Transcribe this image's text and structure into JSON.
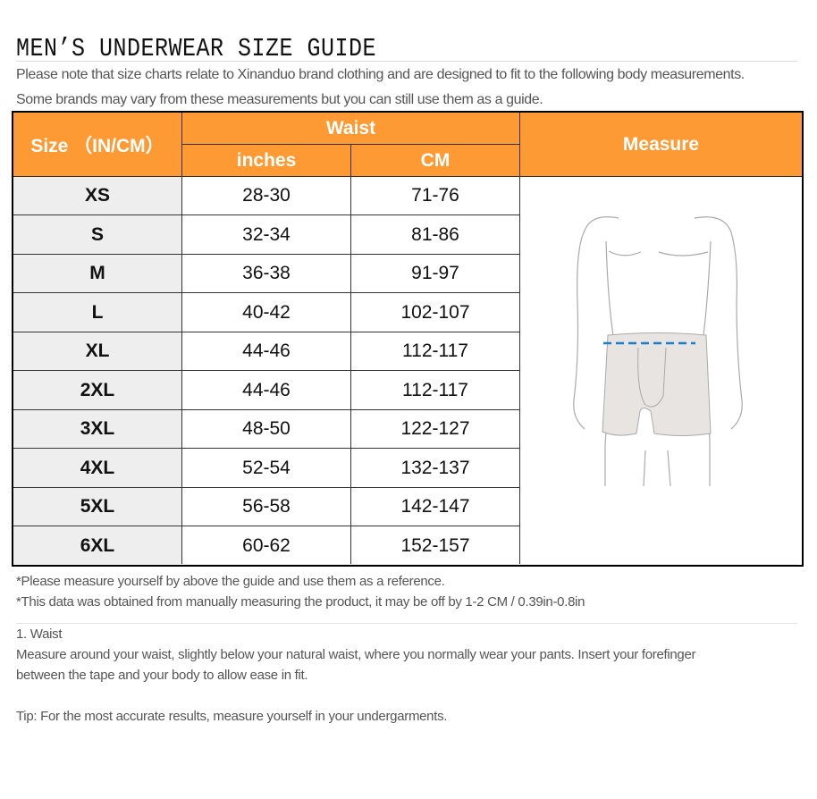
{
  "title": "MEN’S UNDERWEAR SIZE GUIDE",
  "intro": [
    "Please note that size charts relate to Xinanduo brand clothing and are designed to fit to the following body measurements.",
    "Some brands may vary from these measurements but you can still use them as a guide."
  ],
  "table": {
    "header_size": "Size （IN/CM）",
    "header_waist": "Waist",
    "header_inches": "inches",
    "header_cm": "CM",
    "header_measure": "Measure",
    "header_color": "#fd9a33",
    "rows": [
      {
        "size": "XS",
        "inches": "28-30",
        "cm": "71-76"
      },
      {
        "size": "S",
        "inches": "32-34",
        "cm": "81-86"
      },
      {
        "size": "M",
        "inches": "36-38",
        "cm": "91-97"
      },
      {
        "size": "L",
        "inches": "40-42",
        "cm": "102-107"
      },
      {
        "size": "XL",
        "inches": "44-46",
        "cm": "112-117"
      },
      {
        "size": "2XL",
        "inches": "44-46",
        "cm": "112-117"
      },
      {
        "size": "3XL",
        "inches": "48-50",
        "cm": "122-127"
      },
      {
        "size": "4XL",
        "inches": "52-54",
        "cm": "132-137"
      },
      {
        "size": "5XL",
        "inches": "56-58",
        "cm": "142-147"
      },
      {
        "size": "6XL",
        "inches": "60-62",
        "cm": "152-157"
      }
    ]
  },
  "notes": [
    "*Please measure yourself by above the guide and use them as a reference.",
    "*This data was obtained from manually measuring the product, it may be off by 1-2 CM / 0.39in-0.8in"
  ],
  "waist_heading": "1. Waist",
  "waist_text_1": "Measure around your waist, slightly below your natural waist, where you normally wear your pants. Insert your forefinger",
  "waist_text_2": "between the tape and your body to allow ease in fit.",
  "tip": "Tip: For the most accurate results, measure yourself in your undergarments."
}
